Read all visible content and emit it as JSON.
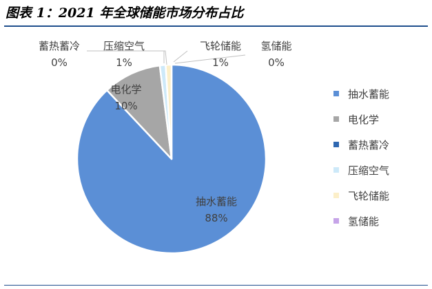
{
  "title": "图表 1：2021 年全球储能市场分布占比",
  "chart_data": {
    "type": "pie",
    "title": "",
    "start_angle_deg": 0,
    "direction": "clockwise",
    "legend_position": "right",
    "slices": [
      {
        "name": "抽水蓄能",
        "value": 88,
        "label": "88%",
        "color": "#5b8fd6"
      },
      {
        "name": "电化学",
        "value": 10,
        "label": "10%",
        "color": "#a6a6a6"
      },
      {
        "name": "蓄热蓄冷",
        "value": 0,
        "label": "0%",
        "color": "#2e67b1"
      },
      {
        "name": "压缩空气",
        "value": 1,
        "label": "1%",
        "color": "#cde9f9"
      },
      {
        "name": "飞轮储能",
        "value": 1,
        "label": "1%",
        "color": "#fcefc9"
      },
      {
        "name": "氢储能",
        "value": 0,
        "label": "0%",
        "color": "#c6a4e8"
      }
    ]
  }
}
